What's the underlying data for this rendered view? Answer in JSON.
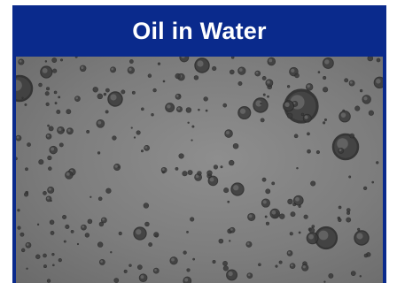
{
  "title": "Oil in Water",
  "image": {
    "description_icon": "micrograph-oil-droplets",
    "colors": {
      "frame": "#0a2a8c",
      "title_text": "#ffffff",
      "background": "#828282"
    }
  }
}
